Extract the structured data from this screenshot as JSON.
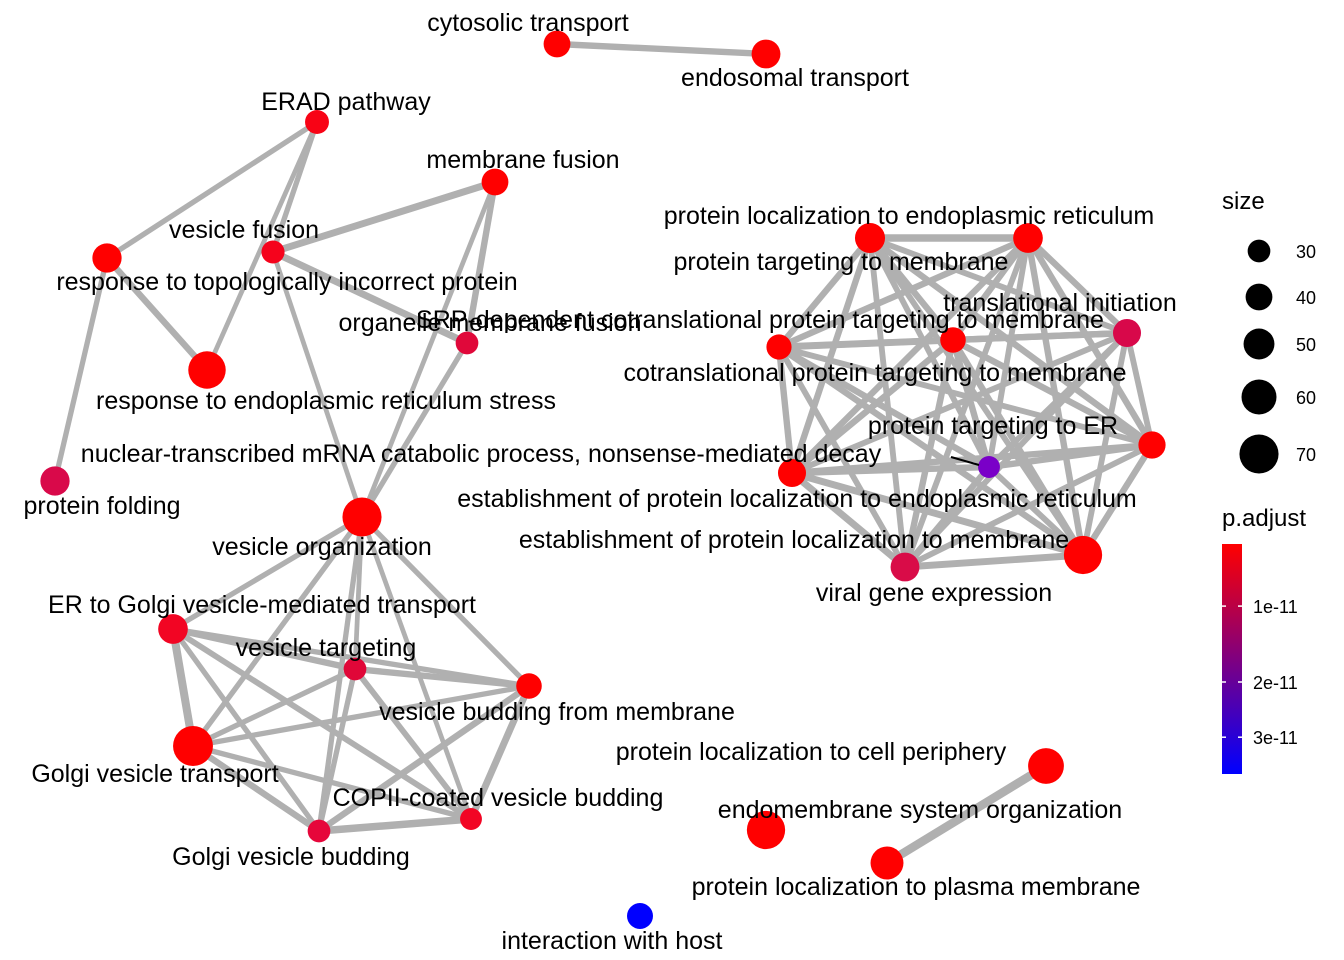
{
  "graph": {
    "edge_color": "#b0b0b0",
    "nodes": [
      {
        "id": "cytosolic-transport",
        "label": "cytosolic transport",
        "size": 40,
        "color": "#ff0000"
      },
      {
        "id": "endosomal-transport",
        "label": "endosomal transport",
        "size": 45,
        "color": "#ff0000"
      },
      {
        "id": "erad-pathway",
        "label": "ERAD pathway",
        "size": 33,
        "color": "#f80315"
      },
      {
        "id": "membrane-fusion",
        "label": "membrane fusion",
        "size": 40,
        "color": "#ff0000"
      },
      {
        "id": "vesicle-fusion",
        "label": "vesicle fusion",
        "size": 31,
        "color": "#f5031c"
      },
      {
        "id": "response-topologically",
        "label": "response to topologically incorrect protein",
        "size": 46,
        "color": "#ff0000"
      },
      {
        "id": "organelle-membrane-fusion",
        "label": "organelle membrane fusion",
        "size": 30,
        "color": "#e0083a"
      },
      {
        "id": "response-er-stress",
        "label": "response to endoplasmic reticulum stress",
        "size": 66,
        "color": "#ff0000"
      },
      {
        "id": "protein-folding",
        "label": "protein folding",
        "size": 46,
        "color": "#d9094a"
      },
      {
        "id": "vesicle-organization",
        "label": "vesicle organization",
        "size": 70,
        "color": "#ff0000"
      },
      {
        "id": "er-golgi-transport",
        "label": "ER to Golgi vesicle-mediated transport",
        "size": 47,
        "color": "#f20523"
      },
      {
        "id": "vesicle-targeting",
        "label": "vesicle targeting",
        "size": 30,
        "color": "#e00738"
      },
      {
        "id": "vesicle-budding-membrane",
        "label": "vesicle budding from membrane",
        "size": 37,
        "color": "#ff0000"
      },
      {
        "id": "golgi-vesicle-transport",
        "label": "Golgi vesicle transport",
        "size": 72,
        "color": "#ff0000"
      },
      {
        "id": "copii-vesicle-budding",
        "label": "COPII-coated vesicle budding",
        "size": 28,
        "color": "#f20524"
      },
      {
        "id": "golgi-vesicle-budding",
        "label": "Golgi vesicle budding",
        "size": 30,
        "color": "#e6063a"
      },
      {
        "id": "protein-loc-er",
        "label": "protein localization to endoplasmic reticulum",
        "size": 48,
        "color": "#ff0000"
      },
      {
        "id": "protein-targeting-membrane-top",
        "label": "protein targeting to membrane",
        "size": 47,
        "color": "#ff0000"
      },
      {
        "id": "srp-dependent",
        "label": "SRP-dependent cotranslational protein targeting to membrane",
        "size": 37,
        "color": "#ff0000"
      },
      {
        "id": "cotranslational-targeting",
        "label": "cotranslational protein targeting to membrane",
        "size": 36,
        "color": "#ff0000"
      },
      {
        "id": "translational-initiation",
        "label": "translational initiation",
        "size": 43,
        "color": "#d8084a"
      },
      {
        "id": "protein-targeting-er",
        "label": "protein targeting to ER",
        "size": 41,
        "color": "#ff0000"
      },
      {
        "id": "nmd-decay",
        "label": "nuclear-transcribed mRNA catabolic process, nonsense-mediated decay",
        "size": 28,
        "color": "#7a00c8"
      },
      {
        "id": "establishment-er",
        "label": "establishment of protein localization to endoplasmic reticulum",
        "size": 43,
        "color": "#ff0000"
      },
      {
        "id": "establishment-membrane",
        "label": "establishment of protein localization to membrane",
        "size": 68,
        "color": "#ff0000"
      },
      {
        "id": "viral-gene-expression",
        "label": "viral gene expression",
        "size": 45,
        "color": "#d90c48"
      },
      {
        "id": "protein-loc-cell-periphery",
        "label": "protein localization to cell periphery",
        "size": 62,
        "color": "#ff0000"
      },
      {
        "id": "endomembrane-organization",
        "label": "endomembrane system organization",
        "size": 68,
        "color": "#ff0000"
      },
      {
        "id": "protein-loc-plasma-membrane",
        "label": "protein localization to plasma membrane",
        "size": 55,
        "color": "#ff0000"
      },
      {
        "id": "interaction-with-host",
        "label": "interaction with host",
        "size": 38,
        "color": "#0000ff"
      }
    ],
    "edges": [
      [
        "cytosolic-transport",
        "endosomal-transport",
        8
      ],
      [
        "erad-pathway",
        "vesicle-fusion",
        6
      ],
      [
        "erad-pathway",
        "response-topologically",
        6
      ],
      [
        "erad-pathway",
        "response-er-stress",
        5
      ],
      [
        "vesicle-fusion",
        "membrane-fusion",
        9
      ],
      [
        "vesicle-fusion",
        "organelle-membrane-fusion",
        9
      ],
      [
        "vesicle-fusion",
        "vesicle-organization",
        5
      ],
      [
        "membrane-fusion",
        "organelle-membrane-fusion",
        8
      ],
      [
        "membrane-fusion",
        "vesicle-organization",
        5
      ],
      [
        "organelle-membrane-fusion",
        "vesicle-organization",
        6
      ],
      [
        "response-topologically",
        "response-er-stress",
        8
      ],
      [
        "response-topologically",
        "protein-folding",
        6
      ],
      [
        "vesicle-organization",
        "er-golgi-transport",
        6
      ],
      [
        "vesicle-organization",
        "vesicle-targeting",
        5
      ],
      [
        "vesicle-organization",
        "vesicle-budding-membrane",
        6
      ],
      [
        "vesicle-organization",
        "golgi-vesicle-transport",
        6
      ],
      [
        "vesicle-organization",
        "copii-vesicle-budding",
        5
      ],
      [
        "vesicle-organization",
        "golgi-vesicle-budding",
        6
      ],
      [
        "er-golgi-transport",
        "vesicle-targeting",
        8
      ],
      [
        "er-golgi-transport",
        "vesicle-budding-membrane",
        6
      ],
      [
        "er-golgi-transport",
        "golgi-vesicle-transport",
        11
      ],
      [
        "er-golgi-transport",
        "copii-vesicle-budding",
        7
      ],
      [
        "er-golgi-transport",
        "golgi-vesicle-budding",
        6
      ],
      [
        "vesicle-targeting",
        "vesicle-budding-membrane",
        8
      ],
      [
        "vesicle-targeting",
        "golgi-vesicle-transport",
        6
      ],
      [
        "vesicle-targeting",
        "copii-vesicle-budding",
        7
      ],
      [
        "vesicle-targeting",
        "golgi-vesicle-budding",
        6
      ],
      [
        "vesicle-budding-membrane",
        "golgi-vesicle-transport",
        6
      ],
      [
        "vesicle-budding-membrane",
        "copii-vesicle-budding",
        9
      ],
      [
        "vesicle-budding-membrane",
        "golgi-vesicle-budding",
        8
      ],
      [
        "golgi-vesicle-transport",
        "copii-vesicle-budding",
        6
      ],
      [
        "golgi-vesicle-transport",
        "golgi-vesicle-budding",
        8
      ],
      [
        "copii-vesicle-budding",
        "golgi-vesicle-budding",
        10
      ],
      [
        "protein-loc-er",
        "protein-targeting-membrane-top",
        10
      ],
      [
        "protein-loc-er",
        "srp-dependent",
        8
      ],
      [
        "protein-loc-er",
        "cotranslational-targeting",
        8
      ],
      [
        "protein-loc-er",
        "translational-initiation",
        7
      ],
      [
        "protein-loc-er",
        "protein-targeting-er",
        8
      ],
      [
        "protein-loc-er",
        "nmd-decay",
        7
      ],
      [
        "protein-loc-er",
        "establishment-er",
        8
      ],
      [
        "protein-loc-er",
        "establishment-membrane",
        7
      ],
      [
        "protein-loc-er",
        "viral-gene-expression",
        7
      ],
      [
        "protein-targeting-membrane-top",
        "srp-dependent",
        8
      ],
      [
        "protein-targeting-membrane-top",
        "cotranslational-targeting",
        8
      ],
      [
        "protein-targeting-membrane-top",
        "translational-initiation",
        8
      ],
      [
        "protein-targeting-membrane-top",
        "protein-targeting-er",
        8
      ],
      [
        "protein-targeting-membrane-top",
        "nmd-decay",
        7
      ],
      [
        "protein-targeting-membrane-top",
        "establishment-er",
        8
      ],
      [
        "protein-targeting-membrane-top",
        "establishment-membrane",
        8
      ],
      [
        "protein-targeting-membrane-top",
        "viral-gene-expression",
        7
      ],
      [
        "srp-dependent",
        "cotranslational-targeting",
        9
      ],
      [
        "srp-dependent",
        "translational-initiation",
        8
      ],
      [
        "srp-dependent",
        "protein-targeting-er",
        8
      ],
      [
        "srp-dependent",
        "nmd-decay",
        8
      ],
      [
        "srp-dependent",
        "establishment-er",
        8
      ],
      [
        "srp-dependent",
        "establishment-membrane",
        8
      ],
      [
        "srp-dependent",
        "viral-gene-expression",
        8
      ],
      [
        "cotranslational-targeting",
        "translational-initiation",
        8
      ],
      [
        "cotranslational-targeting",
        "protein-targeting-er",
        7
      ],
      [
        "cotranslational-targeting",
        "nmd-decay",
        8
      ],
      [
        "cotranslational-targeting",
        "establishment-er",
        8
      ],
      [
        "cotranslational-targeting",
        "establishment-membrane",
        8
      ],
      [
        "cotranslational-targeting",
        "viral-gene-expression",
        7
      ],
      [
        "translational-initiation",
        "protein-targeting-er",
        7
      ],
      [
        "translational-initiation",
        "nmd-decay",
        7
      ],
      [
        "translational-initiation",
        "establishment-er",
        7
      ],
      [
        "translational-initiation",
        "establishment-membrane",
        7
      ],
      [
        "translational-initiation",
        "viral-gene-expression",
        7
      ],
      [
        "protein-targeting-er",
        "nmd-decay",
        8
      ],
      [
        "protein-targeting-er",
        "establishment-er",
        8
      ],
      [
        "protein-targeting-er",
        "establishment-membrane",
        8
      ],
      [
        "protein-targeting-er",
        "viral-gene-expression",
        7
      ],
      [
        "nmd-decay",
        "establishment-er",
        8
      ],
      [
        "nmd-decay",
        "establishment-membrane",
        7
      ],
      [
        "nmd-decay",
        "viral-gene-expression",
        8
      ],
      [
        "establishment-er",
        "establishment-membrane",
        9
      ],
      [
        "establishment-er",
        "viral-gene-expression",
        9
      ],
      [
        "establishment-membrane",
        "viral-gene-expression",
        9
      ],
      [
        "protein-loc-cell-periphery",
        "protein-loc-plasma-membrane",
        12
      ]
    ]
  },
  "legend": {
    "size": {
      "title": "size",
      "entries": [
        {
          "label": "30",
          "value": 30
        },
        {
          "label": "40",
          "value": 40
        },
        {
          "label": "50",
          "value": 50
        },
        {
          "label": "60",
          "value": 60
        },
        {
          "label": "70",
          "value": 70
        }
      ]
    },
    "color": {
      "title": "p.adjust",
      "gradient_top": "#ff0000",
      "gradient_bottom": "#0000ff",
      "ticks": [
        {
          "label": "1e-11",
          "fraction": 0.27
        },
        {
          "label": "2e-11",
          "fraction": 0.6
        },
        {
          "label": "3e-11",
          "fraction": 0.84
        }
      ]
    }
  }
}
